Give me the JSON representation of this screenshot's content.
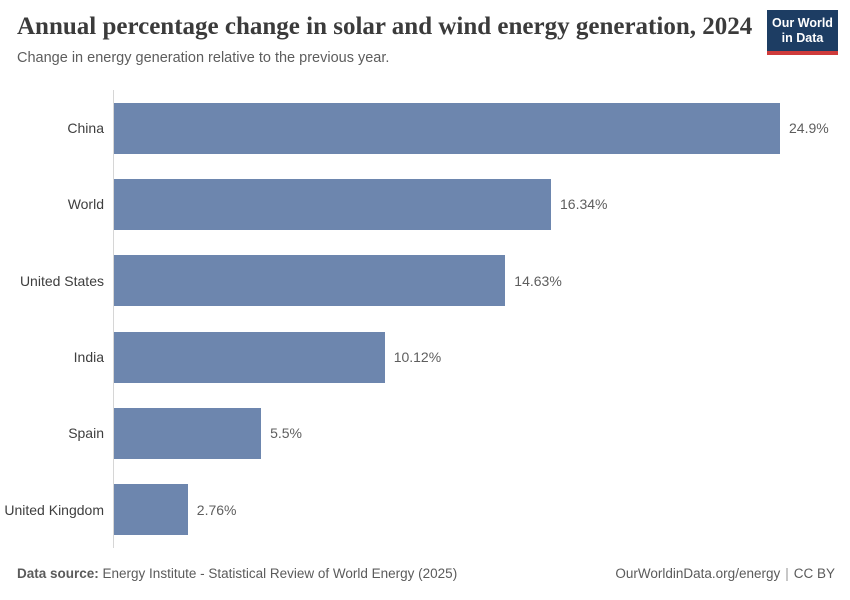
{
  "header": {
    "title": "Annual percentage change in solar and wind energy generation, 2024",
    "subtitle": "Change in energy generation relative to the previous year.",
    "logo": {
      "line1": "Our World",
      "line2": "in Data"
    }
  },
  "chart_data": {
    "type": "bar",
    "orientation": "horizontal",
    "title": "Annual percentage change in solar and wind energy generation, 2024",
    "subtitle": "Change in energy generation relative to the previous year.",
    "categories": [
      "China",
      "World",
      "United States",
      "India",
      "Spain",
      "United Kingdom"
    ],
    "values": [
      24.9,
      16.34,
      14.63,
      10.12,
      5.5,
      2.76
    ],
    "value_labels": [
      "24.9%",
      "16.34%",
      "14.63%",
      "10.12%",
      "5.5%",
      "2.76%"
    ],
    "xlabel": "",
    "ylabel": "",
    "xlim": [
      0,
      24.9
    ],
    "grid": false,
    "legend": null,
    "bar_color": "#6d86ae",
    "axis_line_color": "#d6d6d6"
  },
  "footer": {
    "datasource_label": "Data source:",
    "datasource_text": " Energy Institute - Statistical Review of World Energy (2025)",
    "link": "OurWorldinData.org/energy",
    "separator": "|",
    "license": "CC BY"
  },
  "colors": {
    "bar": "#6d86ae",
    "logo_navy": "#1d3d63",
    "logo_red": "#cf3b3b",
    "title_text": "#3b3b3b",
    "muted_text": "#5b5b5b"
  }
}
